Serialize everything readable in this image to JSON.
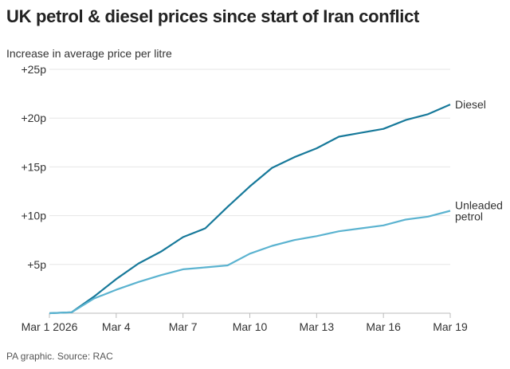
{
  "chart_data": {
    "type": "line",
    "title": "UK petrol & diesel prices since start of Iran conflict",
    "subtitle": "Increase in average price per litre",
    "source": "PA graphic. Source: RAC",
    "x": [
      "Mar 1",
      "Mar 2",
      "Mar 3",
      "Mar 4",
      "Mar 5",
      "Mar 6",
      "Mar 7",
      "Mar 8",
      "Mar 9",
      "Mar 10",
      "Mar 11",
      "Mar 12",
      "Mar 13",
      "Mar 14",
      "Mar 15",
      "Mar 16",
      "Mar 17",
      "Mar 18",
      "Mar 19"
    ],
    "x_tick_labels": [
      "Mar 1 2026",
      "Mar 4",
      "Mar 7",
      "Mar 10",
      "Mar 13",
      "Mar 16",
      "Mar 19"
    ],
    "x_tick_index": [
      0,
      3,
      6,
      9,
      12,
      15,
      18
    ],
    "y_ticks": [
      5,
      10,
      15,
      20,
      25
    ],
    "y_tick_labels": [
      "+5p",
      "+10p",
      "+15p",
      "+20p",
      "+25p"
    ],
    "ylim": [
      0,
      25
    ],
    "grid": "horizontal",
    "series": [
      {
        "name": "Diesel",
        "color": "#17799a",
        "values": [
          0,
          0.1,
          1.7,
          3.5,
          5.1,
          6.3,
          7.8,
          8.7,
          10.9,
          13.0,
          14.9,
          16.0,
          16.9,
          18.1,
          18.5,
          18.9,
          19.8,
          20.4,
          21.4
        ]
      },
      {
        "name": "Unleaded petrol",
        "label_lines": [
          "Unleaded",
          "petrol"
        ],
        "color": "#5bb3d0",
        "values": [
          0,
          0.1,
          1.5,
          2.4,
          3.2,
          3.9,
          4.5,
          4.7,
          4.9,
          6.1,
          6.9,
          7.5,
          7.9,
          8.4,
          8.7,
          9.0,
          9.6,
          9.9,
          10.5
        ]
      }
    ]
  }
}
